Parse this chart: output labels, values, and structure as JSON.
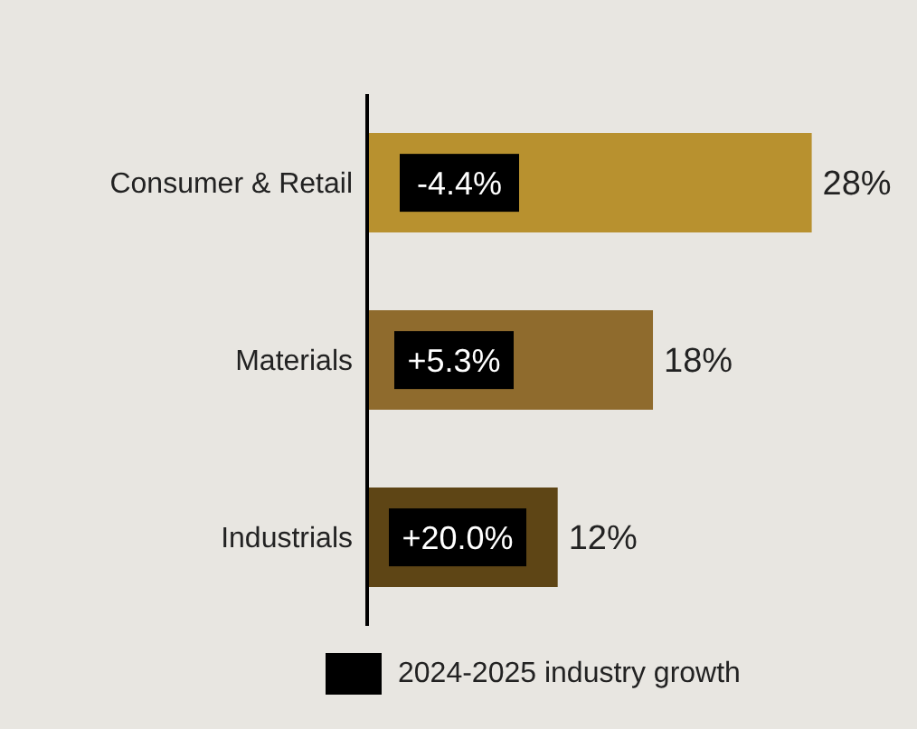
{
  "chart_data": {
    "type": "bar",
    "orientation": "horizontal",
    "categories": [
      "Consumer & Retail",
      "Materials",
      "Industrials"
    ],
    "series": [
      {
        "colors": [
          "#b8912f",
          "#8f6b2d",
          "#5e4515"
        ],
        "values": [
          28,
          18,
          12
        ],
        "value_labels": [
          "28%",
          "18%",
          "12%"
        ]
      },
      {
        "name": "2024-2025 industry growth",
        "color": "#000000",
        "values": [
          null,
          null,
          null
        ],
        "value_labels": [
          "-4.4%",
          "+5.3%",
          "+20.0%"
        ]
      }
    ],
    "legend": "bottom"
  }
}
